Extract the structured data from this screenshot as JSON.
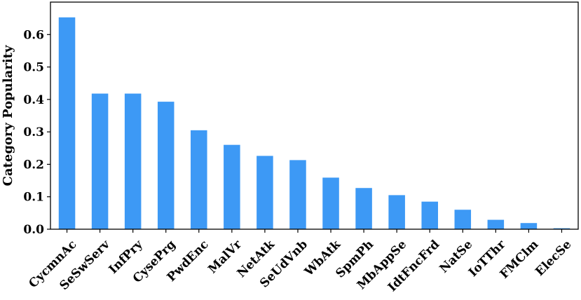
{
  "chart_data": {
    "type": "bar",
    "categories": [
      "CycmnAc",
      "SeSwServ",
      "InfPry",
      "CysePrg",
      "PwdEnc",
      "MalVr",
      "NetAtk",
      "SeUdVnb",
      "WbAtk",
      "SpmPh",
      "MbAppSe",
      "IdtFncFrd",
      "NatSe",
      "IoTThr",
      "FMClm",
      "ElecSe"
    ],
    "values": [
      0.653,
      0.418,
      0.418,
      0.393,
      0.305,
      0.26,
      0.226,
      0.213,
      0.159,
      0.127,
      0.105,
      0.085,
      0.06,
      0.029,
      0.019,
      0.003
    ],
    "title": "",
    "xlabel": "",
    "ylabel": "Category Popularity",
    "ylim": [
      0,
      0.7
    ],
    "yticks": [
      0.0,
      0.1,
      0.2,
      0.3,
      0.4,
      0.5,
      0.6
    ],
    "ytick_labels": [
      "0.0",
      "0.1",
      "0.2",
      "0.3",
      "0.4",
      "0.5",
      "0.6"
    ],
    "bar_color": "#3d99f5",
    "grid": false,
    "legend": "none"
  }
}
